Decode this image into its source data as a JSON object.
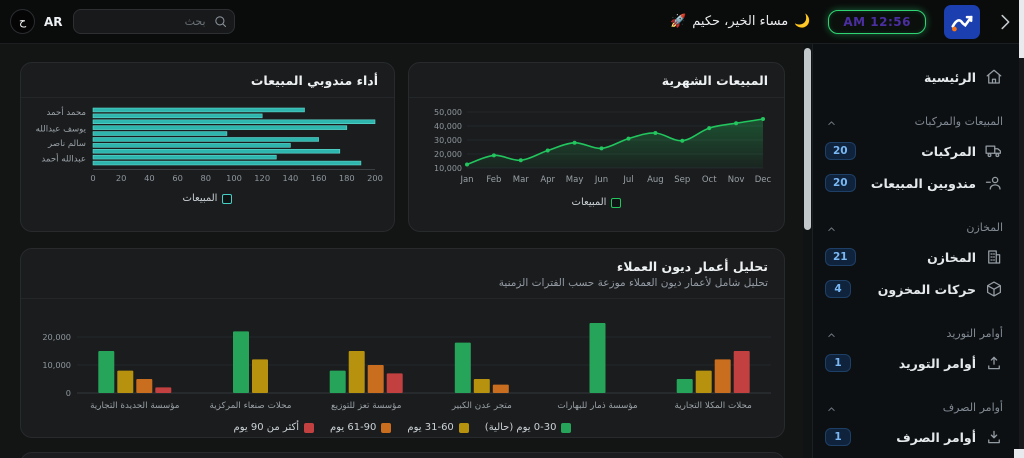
{
  "header": {
    "avatar_text": "ح",
    "language_label": "AR",
    "search": {
      "placeholder": "بحث"
    },
    "greeting": "مساء الخير، حكيم",
    "rocket_emoji": "🚀",
    "moon_emoji": "🌙",
    "clock": "AM 12:56",
    "colors": {
      "clock_border": "#2fd573",
      "clock_text": "#4b2ea0",
      "logo_bg": "#1b3fae",
      "logo_dot": "#f97316"
    }
  },
  "sidebar": {
    "entries": [
      {
        "type": "item",
        "label": "الرئيسية",
        "icon": "home-icon"
      },
      {
        "type": "section",
        "label": "المبيعات والمركبات"
      },
      {
        "type": "item",
        "label": "المركبات",
        "icon": "truck-icon",
        "badge": "20"
      },
      {
        "type": "item",
        "label": "مندوبين المبيعات",
        "icon": "user-minus-icon",
        "badge": "20"
      },
      {
        "type": "section",
        "label": "المخازن"
      },
      {
        "type": "item",
        "label": "المخازن",
        "icon": "warehouse-icon",
        "badge": "21"
      },
      {
        "type": "item",
        "label": "حركات المخزون",
        "icon": "package-icon",
        "badge": "4"
      },
      {
        "type": "section",
        "label": "أوامر التوريد"
      },
      {
        "type": "item",
        "label": "أوامر التوريد",
        "icon": "upload-icon",
        "badge": "1"
      },
      {
        "type": "section",
        "label": "أوامر الصرف"
      },
      {
        "type": "item",
        "label": "أوامر الصرف",
        "icon": "download-icon",
        "badge": "1"
      }
    ]
  },
  "cards": {
    "sales_reps": {
      "title": "أداء مندوبي المبيعات"
    },
    "monthly_sales": {
      "title": "المبيعات الشهرية"
    },
    "debt_aging": {
      "title": "تحليل أعمار ديون العملاء",
      "subtitle": "تحليل شامل لأعمار ديون العملاء موزعة حسب الفترات الزمنية"
    }
  },
  "chart_data": [
    {
      "type": "bar",
      "orientation": "horizontal",
      "title": "أداء مندوبي المبيعات",
      "values": [
        150,
        120,
        200,
        180,
        95,
        160,
        140,
        175,
        130,
        190
      ],
      "axis_labels": [
        {
          "text": "محمد أحمد",
          "row": 0.5
        },
        {
          "text": "يوسف عبدالله",
          "row": 3.3
        },
        {
          "text": "سالم ناصر",
          "row": 5.8
        },
        {
          "text": "عبدالله أحمد",
          "row": 8.4
        }
      ],
      "xticks": [
        0,
        20,
        40,
        60,
        80,
        100,
        120,
        140,
        160,
        180,
        200
      ],
      "xlim": [
        0,
        200
      ],
      "bar_color": "#2eb6ae",
      "legend": [
        {
          "label": "المبيعات",
          "color": "#45d0c6"
        }
      ]
    },
    {
      "type": "line",
      "area": true,
      "title": "المبيعات الشهرية",
      "x": [
        "Jan",
        "Feb",
        "Mar",
        "Apr",
        "May",
        "Jun",
        "Jul",
        "Aug",
        "Sep",
        "Oct",
        "Nov",
        "Dec"
      ],
      "values": [
        12500,
        19000,
        15500,
        22500,
        28000,
        24000,
        31000,
        35000,
        29500,
        38500,
        42000,
        45000
      ],
      "yticks": [
        10000,
        20000,
        30000,
        40000,
        50000
      ],
      "ylim": [
        10000,
        50000
      ],
      "line_color": "#22c55e",
      "legend": [
        {
          "label": "المبيعات",
          "color": "#22c55e"
        }
      ]
    },
    {
      "type": "bar",
      "grouped": true,
      "title": "تحليل أعمار ديون العملاء",
      "categories": [
        "مؤسسة الحديدة التجارية",
        "محلات صنعاء المركزية",
        "مؤسسة تعز للتوزيع",
        "متجر عدن الكبير",
        "مؤسسة ذمار للبهارات",
        "محلات المكلا التجارية"
      ],
      "series": [
        {
          "name": "0-30 يوم (حالية)",
          "color": "#26a45a",
          "values": [
            15000,
            22000,
            8000,
            18000,
            25000,
            5000
          ]
        },
        {
          "name": "31-60 يوم",
          "color": "#b6920e",
          "values": [
            8000,
            12000,
            15000,
            5000,
            0,
            8000
          ]
        },
        {
          "name": "61-90 يوم",
          "color": "#c96d1f",
          "values": [
            5000,
            0,
            10000,
            3000,
            0,
            12000
          ]
        },
        {
          "name": "أكثر من 90 يوم",
          "color": "#c24040",
          "values": [
            2000,
            0,
            7000,
            0,
            0,
            15000
          ]
        }
      ],
      "yticks": [
        0,
        10000,
        20000
      ],
      "ylim": [
        0,
        28000
      ]
    }
  ]
}
